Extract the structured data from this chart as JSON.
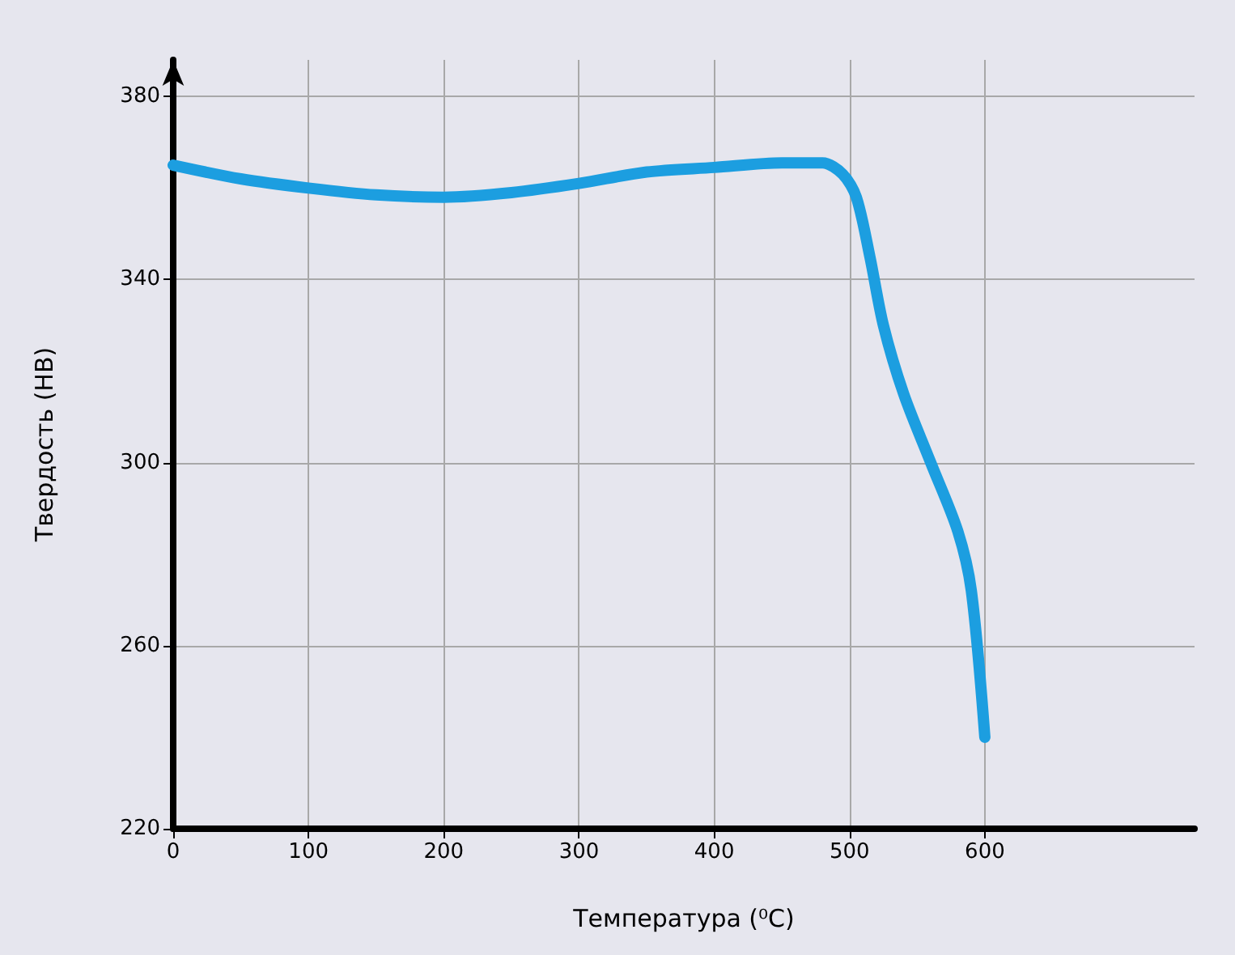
{
  "chart_data": {
    "type": "line",
    "xlabel": "Температура (⁰C)",
    "ylabel": "Твердость (HB)",
    "x": [
      0,
      50,
      100,
      150,
      200,
      250,
      300,
      350,
      400,
      450,
      480,
      495,
      505,
      515,
      525,
      540,
      560,
      580,
      590,
      600
    ],
    "series": [
      {
        "color": "#1c9ee0",
        "values": [
          365,
          362,
          360,
          358.5,
          358,
          359,
          361,
          363.5,
          364.5,
          365.5,
          365.5,
          363,
          358,
          345,
          330,
          315,
          300,
          285,
          272,
          240
        ]
      }
    ],
    "xlim": [
      0,
      755
    ],
    "xticks": [
      0,
      100,
      200,
      300,
      400,
      500,
      600
    ],
    "ylim": [
      220,
      388
    ],
    "yticks": [
      220,
      260,
      300,
      340,
      380
    ],
    "grid": true,
    "line_style": "solid"
  }
}
